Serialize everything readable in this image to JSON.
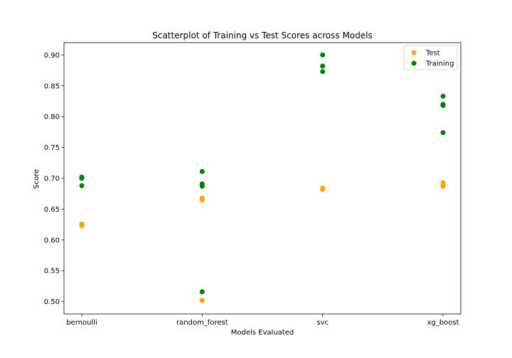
{
  "chart_data": {
    "type": "scatter",
    "title": "Scatterplot of Training vs Test Scores across Models",
    "xlabel": "Models Evaluated",
    "ylabel": "Score",
    "categories": [
      "bernoulli",
      "random_forest",
      "svc",
      "xg_boost"
    ],
    "ylim": [
      0.48,
      0.92
    ],
    "yticks": [
      0.5,
      0.55,
      0.6,
      0.65,
      0.7,
      0.75,
      0.8,
      0.85,
      0.9
    ],
    "grid": false,
    "legend_position": "top-right",
    "series": [
      {
        "name": "Test",
        "color": "#ffa500",
        "points": [
          {
            "x": "bernoulli",
            "y": 0.626
          },
          {
            "x": "bernoulli",
            "y": 0.623
          },
          {
            "x": "bernoulli",
            "y": 0.625
          },
          {
            "x": "random_forest",
            "y": 0.668
          },
          {
            "x": "random_forest",
            "y": 0.665
          },
          {
            "x": "random_forest",
            "y": 0.502
          },
          {
            "x": "svc",
            "y": 0.684
          },
          {
            "x": "svc",
            "y": 0.682
          },
          {
            "x": "svc",
            "y": 0.683
          },
          {
            "x": "xg_boost",
            "y": 0.693
          },
          {
            "x": "xg_boost",
            "y": 0.689
          },
          {
            "x": "xg_boost",
            "y": 0.687
          }
        ]
      },
      {
        "name": "Training",
        "color": "#008000",
        "points": [
          {
            "x": "bernoulli",
            "y": 0.702
          },
          {
            "x": "bernoulli",
            "y": 0.7
          },
          {
            "x": "bernoulli",
            "y": 0.688
          },
          {
            "x": "random_forest",
            "y": 0.711
          },
          {
            "x": "random_forest",
            "y": 0.691
          },
          {
            "x": "random_forest",
            "y": 0.687
          },
          {
            "x": "random_forest",
            "y": 0.516
          },
          {
            "x": "svc",
            "y": 0.9
          },
          {
            "x": "svc",
            "y": 0.882
          },
          {
            "x": "svc",
            "y": 0.873
          },
          {
            "x": "xg_boost",
            "y": 0.833
          },
          {
            "x": "xg_boost",
            "y": 0.82
          },
          {
            "x": "xg_boost",
            "y": 0.818
          },
          {
            "x": "xg_boost",
            "y": 0.774
          }
        ]
      }
    ]
  }
}
